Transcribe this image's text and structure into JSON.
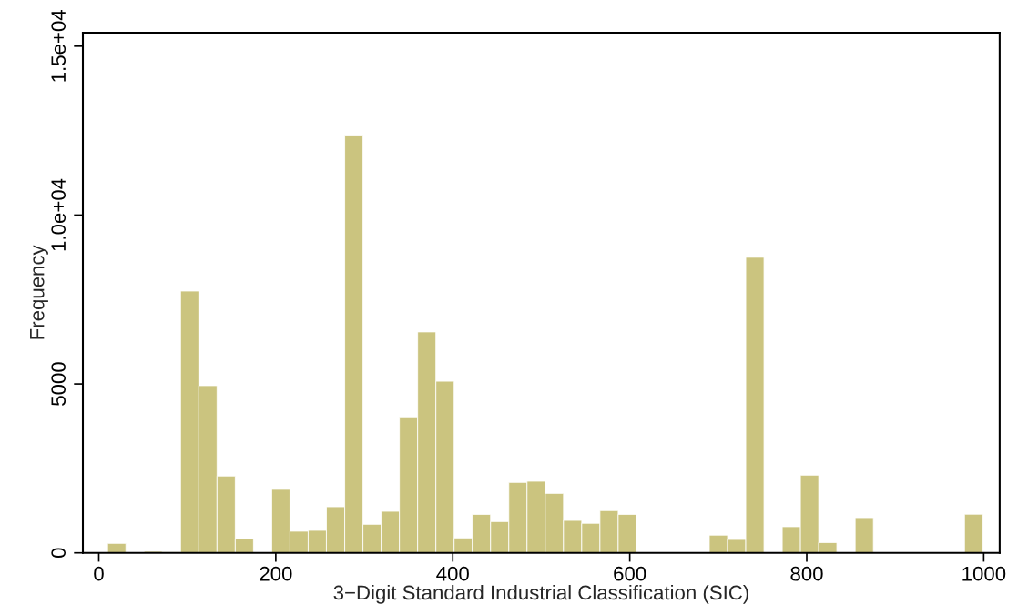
{
  "chart_data": {
    "type": "histogram",
    "xlabel": "3−Digit Standard Industrial Classification (SIC)",
    "ylabel": "Frequency",
    "bins": [
      10,
      30.6,
      51.2,
      71.8,
      92.4,
      113.0,
      133.6,
      154.2,
      174.8,
      195.4,
      216.0,
      236.6,
      257.2,
      277.9,
      298.5,
      319.1,
      339.7,
      360.3,
      380.9,
      401.5,
      422.1,
      442.7,
      463.3,
      483.9,
      504.5,
      525.1,
      545.7,
      566.3,
      586.9,
      607.5,
      628.1,
      648.7,
      669.2,
      689.9,
      710.5,
      731.1,
      751.7,
      772.3,
      792.9,
      813.5,
      834.0,
      854.7,
      875.3,
      895.9,
      916.5,
      937.1,
      957.7,
      978.3,
      999.0
    ],
    "values": [
      280,
      0,
      45,
      30,
      7750,
      4950,
      2275,
      420,
      0,
      1880,
      640,
      665,
      1365,
      12360,
      845,
      1230,
      4025,
      6540,
      5080,
      440,
      1140,
      925,
      2085,
      2120,
      1760,
      960,
      875,
      1250,
      1140,
      0,
      0,
      0,
      0,
      525,
      395,
      8750,
      0,
      775,
      2300,
      305,
      0,
      1015,
      0,
      0,
      0,
      0,
      0,
      1145
    ],
    "color": "#cbc47f",
    "xlim": [
      -18,
      1018
    ],
    "xticks": [
      0,
      200,
      400,
      600,
      800,
      1000
    ],
    "ylim": [
      0,
      15400
    ],
    "yticks": [
      0,
      5000,
      {
        "value": 10000,
        "label": "1.0e+04"
      },
      {
        "value": 15000,
        "label": "1.5e+04"
      }
    ],
    "grid": false
  }
}
